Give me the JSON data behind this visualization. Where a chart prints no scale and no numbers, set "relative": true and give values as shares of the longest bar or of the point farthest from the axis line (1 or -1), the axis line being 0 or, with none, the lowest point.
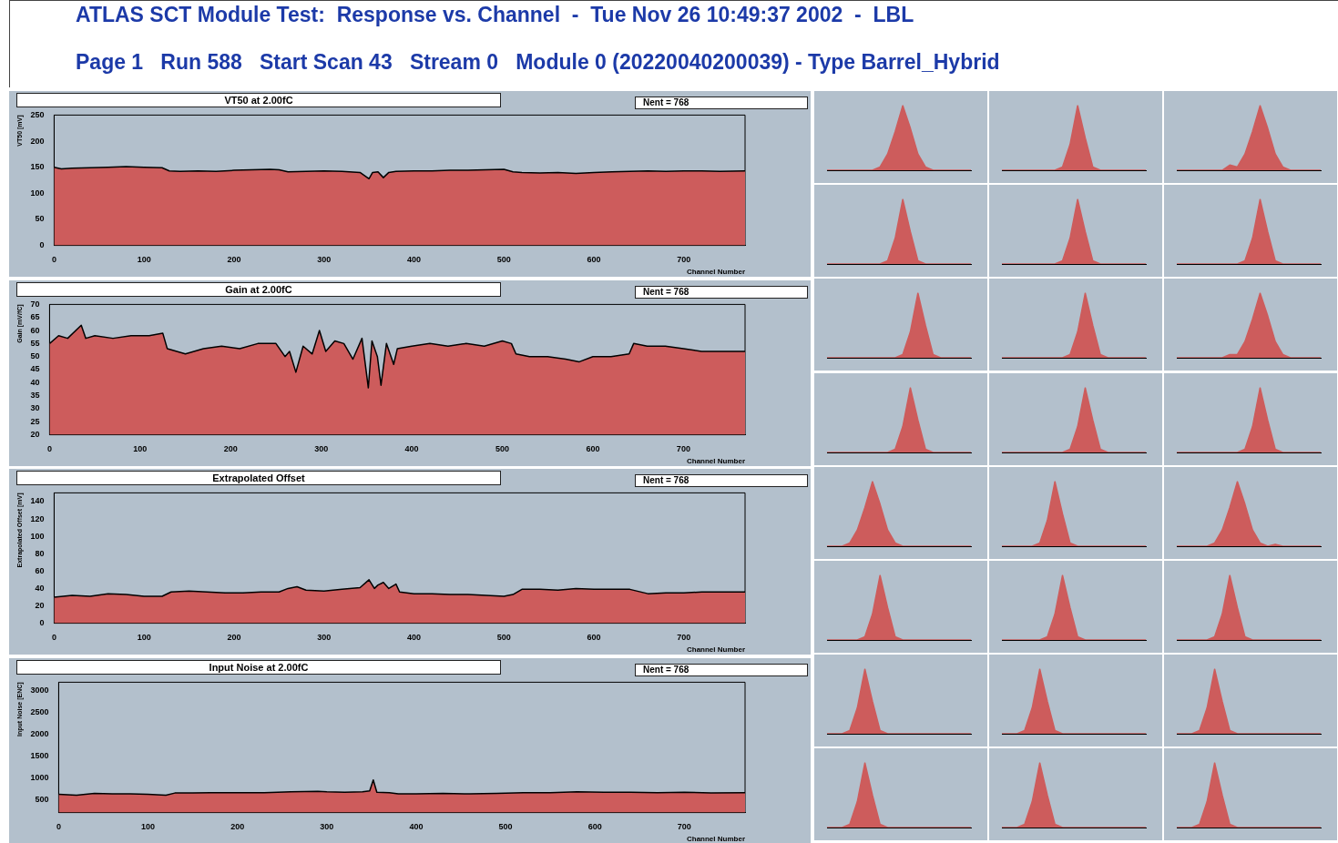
{
  "chart_data": [
    {
      "type": "other",
      "title": "ATLAS SCT Module Test:  Response vs. Channel  -  Tue Nov 26 10:49:37 2002  -  LBL",
      "subtitle": "Page 1   Run 588   Start Scan 43   Stream 0   Module 0 (20220040200039) - Type Barrel_Hybrid"
    },
    {
      "type": "area",
      "title": "VT50 at 2.00fC",
      "xlabel": "Channel Number",
      "ylabel": "VT50 [mV]",
      "color": "#cd5c5c",
      "annotations": [
        "Nent = 768"
      ],
      "xlim": [
        0,
        768
      ],
      "xticks": [
        0,
        100,
        200,
        300,
        400,
        500,
        600,
        700
      ],
      "ylim": [
        0,
        250
      ],
      "yticks": [
        0,
        50,
        100,
        150,
        200,
        250
      ],
      "x": [
        0,
        8,
        20,
        40,
        60,
        80,
        100,
        120,
        128,
        140,
        160,
        180,
        200,
        220,
        240,
        250,
        260,
        280,
        300,
        320,
        340,
        350,
        354,
        360,
        366,
        372,
        380,
        400,
        420,
        440,
        460,
        480,
        500,
        510,
        520,
        540,
        560,
        580,
        600,
        620,
        640,
        660,
        680,
        700,
        720,
        740,
        768
      ],
      "values": [
        150,
        147,
        148,
        149,
        150,
        151,
        150,
        149,
        143,
        142,
        143,
        142,
        144,
        145,
        146,
        145,
        141,
        142,
        143,
        142,
        140,
        128,
        140,
        141,
        130,
        140,
        142,
        143,
        143,
        144,
        144,
        145,
        146,
        141,
        140,
        139,
        140,
        138,
        140,
        141,
        142,
        143,
        142,
        143,
        143,
        142,
        143
      ]
    },
    {
      "type": "area",
      "title": "Gain at 2.00fC",
      "xlabel": "Channel Number",
      "ylabel": "Gain [mV/fC]",
      "color": "#cd5c5c",
      "annotations": [
        "Nent = 768"
      ],
      "xlim": [
        0,
        768
      ],
      "xticks": [
        0,
        100,
        200,
        300,
        400,
        500,
        600,
        700
      ],
      "ylim": [
        20,
        70
      ],
      "yticks": [
        20,
        25,
        30,
        35,
        40,
        45,
        50,
        55,
        60,
        65,
        70
      ],
      "x": [
        0,
        10,
        20,
        35,
        40,
        50,
        70,
        90,
        110,
        125,
        130,
        150,
        170,
        190,
        210,
        230,
        250,
        260,
        265,
        272,
        280,
        290,
        298,
        305,
        315,
        325,
        335,
        345,
        352,
        356,
        362,
        366,
        372,
        380,
        384,
        400,
        420,
        440,
        460,
        480,
        500,
        510,
        515,
        530,
        550,
        570,
        585,
        600,
        620,
        640,
        645,
        660,
        680,
        700,
        720,
        740,
        768
      ],
      "values": [
        55,
        58,
        57,
        62,
        57,
        58,
        57,
        58,
        58,
        59,
        53,
        51,
        53,
        54,
        53,
        55,
        55,
        50,
        52,
        44,
        54,
        51,
        60,
        52,
        56,
        55,
        49,
        57,
        38,
        56,
        50,
        39,
        55,
        47,
        53,
        54,
        55,
        54,
        55,
        54,
        56,
        55,
        51,
        50,
        50,
        49,
        48,
        50,
        50,
        51,
        55,
        54,
        54,
        53,
        52,
        52,
        52
      ]
    },
    {
      "type": "area",
      "title": "Extrapolated Offset",
      "xlabel": "Channel Number",
      "ylabel": "Extrapolated Offset [mV]",
      "color": "#cd5c5c",
      "annotations": [
        "Nent = 768"
      ],
      "xlim": [
        0,
        768
      ],
      "xticks": [
        0,
        100,
        200,
        300,
        400,
        500,
        600,
        700
      ],
      "ylim": [
        0,
        150
      ],
      "yticks": [
        0,
        20,
        40,
        60,
        80,
        100,
        120,
        140
      ],
      "x": [
        0,
        20,
        40,
        60,
        80,
        100,
        120,
        130,
        150,
        170,
        190,
        210,
        230,
        250,
        260,
        270,
        280,
        300,
        320,
        340,
        350,
        356,
        360,
        366,
        372,
        380,
        384,
        400,
        420,
        440,
        460,
        480,
        500,
        510,
        520,
        540,
        560,
        580,
        600,
        620,
        640,
        660,
        680,
        700,
        720,
        740,
        768
      ],
      "values": [
        30,
        32,
        31,
        34,
        33,
        31,
        31,
        36,
        37,
        36,
        35,
        35,
        36,
        36,
        40,
        42,
        38,
        37,
        39,
        41,
        50,
        40,
        44,
        47,
        40,
        45,
        36,
        34,
        34,
        33,
        33,
        32,
        31,
        33,
        39,
        39,
        38,
        40,
        39,
        39,
        39,
        34,
        35,
        35,
        36,
        36,
        36
      ]
    },
    {
      "type": "area",
      "title": "Input Noise at 2.00fC",
      "xlabel": "Channel Number",
      "ylabel": "Input Noise [ENC]",
      "color": "#cd5c5c",
      "annotations": [
        "Nent = 768"
      ],
      "xlim": [
        0,
        768
      ],
      "xticks": [
        0,
        100,
        200,
        300,
        400,
        500,
        600,
        700
      ],
      "ylim": [
        200,
        3200
      ],
      "yticks": [
        500,
        1000,
        1500,
        2000,
        2500,
        3000
      ],
      "x": [
        0,
        20,
        40,
        60,
        80,
        100,
        120,
        130,
        150,
        170,
        200,
        230,
        260,
        290,
        300,
        320,
        340,
        348,
        352,
        356,
        370,
        380,
        400,
        430,
        460,
        490,
        520,
        550,
        580,
        610,
        640,
        670,
        700,
        730,
        768
      ],
      "values": [
        620,
        600,
        640,
        630,
        630,
        620,
        600,
        650,
        650,
        660,
        660,
        660,
        680,
        690,
        680,
        670,
        680,
        700,
        950,
        670,
        660,
        630,
        630,
        640,
        630,
        640,
        660,
        660,
        680,
        670,
        670,
        660,
        670,
        650,
        660
      ]
    },
    {
      "type": "area",
      "relative": true,
      "color": "#cd5c5c",
      "categories": [
        null,
        null,
        null,
        null,
        null,
        null,
        null,
        null,
        null,
        null,
        null,
        null,
        null,
        null,
        null,
        null,
        null,
        null,
        null,
        null
      ],
      "values": [
        0,
        0,
        0,
        0,
        0,
        0,
        0,
        0.05,
        0.25,
        0.6,
        1,
        0.65,
        0.25,
        0.05,
        0,
        0,
        0,
        0,
        0,
        0
      ]
    },
    {
      "type": "area",
      "relative": true,
      "color": "#cd5c5c",
      "categories": [
        null,
        null,
        null,
        null,
        null,
        null,
        null,
        null,
        null,
        null,
        null,
        null,
        null,
        null,
        null,
        null,
        null,
        null,
        null,
        null
      ],
      "values": [
        0,
        0,
        0,
        0,
        0,
        0,
        0,
        0,
        0.05,
        0.4,
        1,
        0.5,
        0.05,
        0,
        0,
        0,
        0,
        0,
        0,
        0
      ]
    },
    {
      "type": "area",
      "relative": true,
      "color": "#cd5c5c",
      "categories": [
        null,
        null,
        null,
        null,
        null,
        null,
        null,
        null,
        null,
        null,
        null,
        null,
        null,
        null,
        null,
        null,
        null,
        null,
        null,
        null
      ],
      "values": [
        0,
        0,
        0,
        0,
        0,
        0,
        0,
        0.08,
        0.05,
        0.25,
        0.6,
        1,
        0.65,
        0.25,
        0.05,
        0,
        0,
        0,
        0,
        0
      ]
    },
    {
      "type": "area",
      "relative": true,
      "color": "#cd5c5c",
      "categories": [
        null,
        null,
        null,
        null,
        null,
        null,
        null,
        null,
        null,
        null,
        null,
        null,
        null,
        null,
        null,
        null,
        null,
        null,
        null,
        null
      ],
      "values": [
        0,
        0,
        0,
        0,
        0,
        0,
        0,
        0,
        0.05,
        0.4,
        1,
        0.5,
        0.05,
        0,
        0,
        0,
        0,
        0,
        0,
        0
      ]
    },
    {
      "type": "area",
      "relative": true,
      "color": "#cd5c5c",
      "categories": [
        null,
        null,
        null,
        null,
        null,
        null,
        null,
        null,
        null,
        null,
        null,
        null,
        null,
        null,
        null,
        null,
        null,
        null,
        null,
        null
      ],
      "values": [
        0,
        0,
        0,
        0,
        0,
        0,
        0,
        0,
        0.05,
        0.4,
        1,
        0.5,
        0.05,
        0,
        0,
        0,
        0,
        0,
        0,
        0
      ]
    },
    {
      "type": "area",
      "relative": true,
      "color": "#cd5c5c",
      "categories": [
        null,
        null,
        null,
        null,
        null,
        null,
        null,
        null,
        null,
        null,
        null,
        null,
        null,
        null,
        null,
        null,
        null,
        null,
        null,
        null
      ],
      "values": [
        0,
        0,
        0,
        0,
        0,
        0,
        0,
        0,
        0,
        0.05,
        0.4,
        1,
        0.5,
        0.05,
        0,
        0,
        0,
        0,
        0,
        0
      ]
    },
    {
      "type": "area",
      "relative": true,
      "color": "#cd5c5c",
      "categories": [
        null,
        null,
        null,
        null,
        null,
        null,
        null,
        null,
        null,
        null,
        null,
        null,
        null,
        null,
        null,
        null,
        null,
        null,
        null,
        null
      ],
      "values": [
        0,
        0,
        0,
        0,
        0,
        0,
        0,
        0,
        0,
        0,
        0.05,
        0.4,
        1,
        0.5,
        0.05,
        0,
        0,
        0,
        0,
        0
      ]
    },
    {
      "type": "area",
      "relative": true,
      "color": "#cd5c5c",
      "categories": [
        null,
        null,
        null,
        null,
        null,
        null,
        null,
        null,
        null,
        null,
        null,
        null,
        null,
        null,
        null,
        null,
        null,
        null,
        null,
        null
      ],
      "values": [
        0,
        0,
        0,
        0,
        0,
        0,
        0,
        0,
        0,
        0.05,
        0.4,
        1,
        0.5,
        0.05,
        0,
        0,
        0,
        0,
        0,
        0
      ]
    },
    {
      "type": "area",
      "relative": true,
      "color": "#cd5c5c",
      "categories": [
        null,
        null,
        null,
        null,
        null,
        null,
        null,
        null,
        null,
        null,
        null,
        null,
        null,
        null,
        null,
        null,
        null,
        null,
        null,
        null
      ],
      "values": [
        0,
        0,
        0,
        0,
        0,
        0,
        0,
        0.05,
        0.05,
        0.25,
        0.6,
        1,
        0.65,
        0.25,
        0.05,
        0,
        0,
        0,
        0,
        0
      ]
    },
    {
      "type": "area",
      "relative": true,
      "color": "#cd5c5c",
      "categories": [
        null,
        null,
        null,
        null,
        null,
        null,
        null,
        null,
        null,
        null,
        null,
        null,
        null,
        null,
        null,
        null,
        null,
        null,
        null,
        null
      ],
      "values": [
        0,
        0,
        0,
        0,
        0,
        0,
        0,
        0,
        0,
        0.05,
        0.4,
        1,
        0.5,
        0.05,
        0,
        0,
        0,
        0,
        0,
        0
      ]
    },
    {
      "type": "area",
      "relative": true,
      "color": "#cd5c5c",
      "categories": [
        null,
        null,
        null,
        null,
        null,
        null,
        null,
        null,
        null,
        null,
        null,
        null,
        null,
        null,
        null,
        null,
        null,
        null,
        null,
        null
      ],
      "values": [
        0,
        0,
        0,
        0,
        0,
        0,
        0,
        0,
        0,
        0.05,
        0.4,
        1,
        0.5,
        0.05,
        0,
        0,
        0,
        0,
        0,
        0
      ]
    },
    {
      "type": "area",
      "relative": true,
      "color": "#cd5c5c",
      "categories": [
        null,
        null,
        null,
        null,
        null,
        null,
        null,
        null,
        null,
        null,
        null,
        null,
        null,
        null,
        null,
        null,
        null,
        null,
        null,
        null
      ],
      "values": [
        0,
        0,
        0,
        0,
        0,
        0,
        0,
        0,
        0,
        0.05,
        0.4,
        1,
        0.5,
        0.05,
        0,
        0,
        0,
        0,
        0,
        0
      ]
    },
    {
      "type": "area",
      "relative": true,
      "color": "#cd5c5c",
      "categories": [
        null,
        null,
        null,
        null,
        null,
        null,
        null,
        null,
        null,
        null,
        null,
        null,
        null,
        null,
        null,
        null,
        null,
        null,
        null,
        null
      ],
      "values": [
        0,
        0,
        0,
        0.05,
        0.25,
        0.6,
        1,
        0.65,
        0.25,
        0.05,
        0,
        0,
        0,
        0,
        0,
        0,
        0,
        0,
        0,
        0
      ]
    },
    {
      "type": "area",
      "relative": true,
      "color": "#cd5c5c",
      "categories": [
        null,
        null,
        null,
        null,
        null,
        null,
        null,
        null,
        null,
        null,
        null,
        null,
        null,
        null,
        null,
        null,
        null,
        null,
        null,
        null
      ],
      "values": [
        0,
        0,
        0,
        0,
        0,
        0.05,
        0.4,
        1,
        0.5,
        0.05,
        0,
        0,
        0,
        0,
        0,
        0,
        0,
        0,
        0,
        0
      ]
    },
    {
      "type": "area",
      "relative": true,
      "color": "#cd5c5c",
      "categories": [
        null,
        null,
        null,
        null,
        null,
        null,
        null,
        null,
        null,
        null,
        null,
        null,
        null,
        null,
        null,
        null,
        null,
        null,
        null,
        null
      ],
      "values": [
        0,
        0,
        0,
        0,
        0,
        0.05,
        0.25,
        0.6,
        1,
        0.65,
        0.25,
        0.05,
        0,
        0.03,
        0,
        0,
        0,
        0,
        0,
        0
      ]
    },
    {
      "type": "area",
      "relative": true,
      "color": "#cd5c5c",
      "categories": [
        null,
        null,
        null,
        null,
        null,
        null,
        null,
        null,
        null,
        null,
        null,
        null,
        null,
        null,
        null,
        null,
        null,
        null,
        null,
        null
      ],
      "values": [
        0,
        0,
        0,
        0,
        0,
        0.05,
        0.4,
        1,
        0.5,
        0.05,
        0,
        0,
        0,
        0,
        0,
        0,
        0,
        0,
        0,
        0
      ]
    },
    {
      "type": "area",
      "relative": true,
      "color": "#cd5c5c",
      "categories": [
        null,
        null,
        null,
        null,
        null,
        null,
        null,
        null,
        null,
        null,
        null,
        null,
        null,
        null,
        null,
        null,
        null,
        null,
        null,
        null
      ],
      "values": [
        0,
        0,
        0,
        0,
        0,
        0,
        0.05,
        0.4,
        1,
        0.5,
        0.05,
        0,
        0,
        0,
        0,
        0,
        0,
        0,
        0,
        0
      ]
    },
    {
      "type": "area",
      "relative": true,
      "color": "#cd5c5c",
      "categories": [
        null,
        null,
        null,
        null,
        null,
        null,
        null,
        null,
        null,
        null,
        null,
        null,
        null,
        null,
        null,
        null,
        null,
        null,
        null,
        null
      ],
      "values": [
        0,
        0,
        0,
        0,
        0,
        0.05,
        0.4,
        1,
        0.5,
        0.05,
        0,
        0,
        0,
        0,
        0,
        0,
        0,
        0,
        0,
        0
      ]
    },
    {
      "type": "area",
      "relative": true,
      "color": "#cd5c5c",
      "categories": [
        null,
        null,
        null,
        null,
        null,
        null,
        null,
        null,
        null,
        null,
        null,
        null,
        null,
        null,
        null,
        null,
        null,
        null,
        null,
        null
      ],
      "values": [
        0,
        0,
        0,
        0.05,
        0.4,
        1,
        0.5,
        0.05,
        0,
        0,
        0,
        0,
        0,
        0,
        0,
        0,
        0,
        0,
        0,
        0
      ]
    },
    {
      "type": "area",
      "relative": true,
      "color": "#cd5c5c",
      "categories": [
        null,
        null,
        null,
        null,
        null,
        null,
        null,
        null,
        null,
        null,
        null,
        null,
        null,
        null,
        null,
        null,
        null,
        null,
        null,
        null
      ],
      "values": [
        0,
        0,
        0,
        0.05,
        0.4,
        1,
        0.5,
        0.05,
        0,
        0,
        0,
        0,
        0,
        0,
        0,
        0,
        0,
        0,
        0,
        0
      ]
    },
    {
      "type": "area",
      "relative": true,
      "color": "#cd5c5c",
      "categories": [
        null,
        null,
        null,
        null,
        null,
        null,
        null,
        null,
        null,
        null,
        null,
        null,
        null,
        null,
        null,
        null,
        null,
        null,
        null,
        null
      ],
      "values": [
        0,
        0,
        0,
        0.05,
        0.4,
        1,
        0.5,
        0.05,
        0,
        0,
        0,
        0,
        0,
        0,
        0,
        0,
        0,
        0,
        0,
        0
      ]
    },
    {
      "type": "area",
      "relative": true,
      "color": "#cd5c5c",
      "categories": [
        null,
        null,
        null,
        null,
        null,
        null,
        null,
        null,
        null,
        null,
        null,
        null,
        null,
        null,
        null,
        null,
        null,
        null,
        null,
        null
      ],
      "values": [
        0,
        0,
        0,
        0.05,
        0.4,
        1,
        0.5,
        0.05,
        0,
        0,
        0,
        0,
        0,
        0,
        0,
        0,
        0,
        0,
        0,
        0
      ]
    },
    {
      "type": "area",
      "relative": true,
      "color": "#cd5c5c",
      "categories": [
        null,
        null,
        null,
        null,
        null,
        null,
        null,
        null,
        null,
        null,
        null,
        null,
        null,
        null,
        null,
        null,
        null,
        null,
        null,
        null
      ],
      "values": [
        0,
        0,
        0,
        0.05,
        0.4,
        1,
        0.5,
        0.05,
        0,
        0,
        0,
        0,
        0,
        0,
        0,
        0,
        0,
        0,
        0,
        0
      ]
    },
    {
      "type": "area",
      "relative": true,
      "color": "#cd5c5c",
      "categories": [
        null,
        null,
        null,
        null,
        null,
        null,
        null,
        null,
        null,
        null,
        null,
        null,
        null,
        null,
        null,
        null,
        null,
        null,
        null,
        null
      ],
      "values": [
        0,
        0,
        0,
        0.05,
        0.4,
        1,
        0.5,
        0.05,
        0,
        0,
        0,
        0,
        0,
        0,
        0,
        0,
        0,
        0,
        0,
        0
      ]
    }
  ]
}
